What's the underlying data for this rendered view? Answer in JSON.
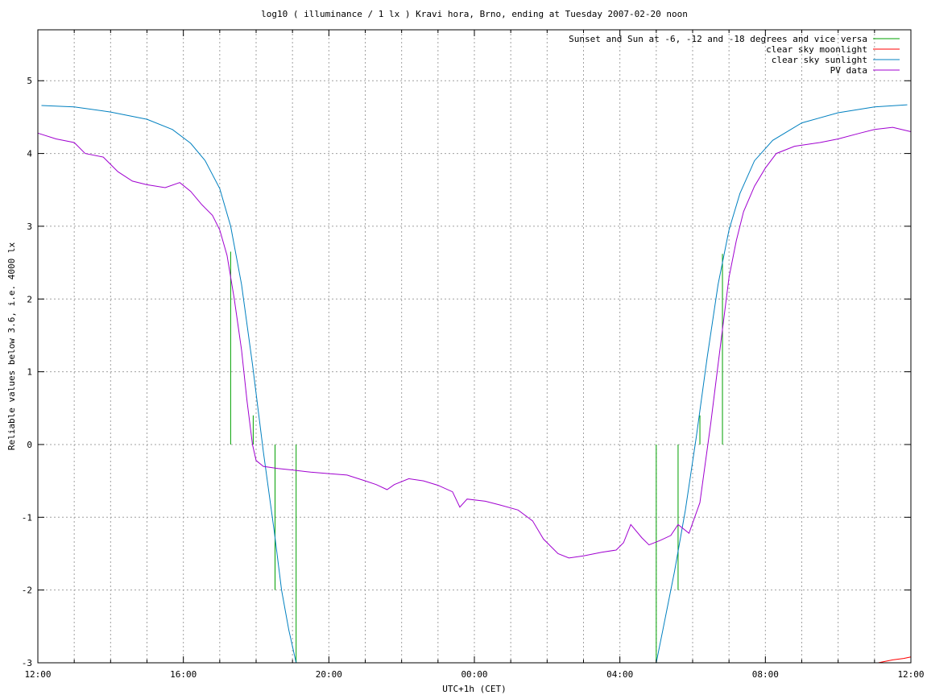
{
  "chart_data": {
    "type": "line",
    "title": "log10 ( illuminance / 1 lx ) Kravi hora, Brno, ending at Tuesday 2007-02-20 noon",
    "xlabel": "UTC+1h (CET)",
    "ylabel": "Reliable values below 3.6, i.e. 4000 lx",
    "xlim": [
      12,
      36
    ],
    "ylim": [
      -3,
      5.7
    ],
    "grid": true,
    "legend_position": "top-right",
    "x_ticks": [
      {
        "value": 12,
        "label": "12:00"
      },
      {
        "value": 16,
        "label": "16:00"
      },
      {
        "value": 20,
        "label": "20:00"
      },
      {
        "value": 24,
        "label": "00:00"
      },
      {
        "value": 28,
        "label": "04:00"
      },
      {
        "value": 32,
        "label": "08:00"
      },
      {
        "value": 36,
        "label": "12:00"
      }
    ],
    "x_minor_step": 1,
    "y_ticks": [
      {
        "value": -3,
        "label": "-3"
      },
      {
        "value": -2,
        "label": "-2"
      },
      {
        "value": -1,
        "label": "-1"
      },
      {
        "value": 0,
        "label": "0"
      },
      {
        "value": 1,
        "label": "1"
      },
      {
        "value": 2,
        "label": "2"
      },
      {
        "value": 3,
        "label": "3"
      },
      {
        "value": 4,
        "label": "4"
      },
      {
        "value": 5,
        "label": "5"
      }
    ],
    "series": [
      {
        "name": "Sunset and Sun at -6, -12 and -18 degrees and vice versa",
        "color": "#00a000",
        "style": "impulses",
        "points": [
          [
            17.3,
            2.65
          ],
          [
            17.92,
            0.4
          ],
          [
            18.52,
            -2.0
          ],
          [
            19.1,
            -3.0
          ],
          [
            29.0,
            -3.0
          ],
          [
            29.6,
            -2.0
          ],
          [
            30.2,
            0.4
          ],
          [
            30.82,
            2.62
          ]
        ]
      },
      {
        "name": "clear sky moonlight",
        "color": "#ff0000",
        "style": "line",
        "points": [
          [
            35.1,
            -3.0
          ],
          [
            35.5,
            -2.96
          ],
          [
            35.8,
            -2.94
          ],
          [
            36.0,
            -2.92
          ]
        ]
      },
      {
        "name": "clear sky sunlight",
        "color": "#0080c0",
        "style": "line",
        "points": [
          [
            12.1,
            4.66
          ],
          [
            13.0,
            4.64
          ],
          [
            14.0,
            4.57
          ],
          [
            15.0,
            4.47
          ],
          [
            15.7,
            4.33
          ],
          [
            16.2,
            4.14
          ],
          [
            16.6,
            3.9
          ],
          [
            17.0,
            3.52
          ],
          [
            17.3,
            3.0
          ],
          [
            17.6,
            2.2
          ],
          [
            17.9,
            1.1
          ],
          [
            18.2,
            -0.1
          ],
          [
            18.5,
            -1.2
          ],
          [
            18.7,
            -2.0
          ],
          [
            18.9,
            -2.55
          ],
          [
            19.1,
            -3.0
          ],
          [
            29.0,
            -3.0
          ],
          [
            29.2,
            -2.5
          ],
          [
            29.5,
            -1.75
          ],
          [
            29.8,
            -0.9
          ],
          [
            30.1,
            0.1
          ],
          [
            30.4,
            1.2
          ],
          [
            30.7,
            2.2
          ],
          [
            31.0,
            2.95
          ],
          [
            31.3,
            3.45
          ],
          [
            31.7,
            3.9
          ],
          [
            32.2,
            4.18
          ],
          [
            33.0,
            4.42
          ],
          [
            34.0,
            4.56
          ],
          [
            35.0,
            4.64
          ],
          [
            35.9,
            4.67
          ]
        ]
      },
      {
        "name": "PV data",
        "color": "#a000d0",
        "style": "line",
        "points": [
          [
            12.0,
            4.28
          ],
          [
            12.5,
            4.2
          ],
          [
            13.0,
            4.15
          ],
          [
            13.3,
            4.0
          ],
          [
            13.8,
            3.95
          ],
          [
            14.2,
            3.75
          ],
          [
            14.6,
            3.62
          ],
          [
            15.0,
            3.57
          ],
          [
            15.5,
            3.53
          ],
          [
            15.9,
            3.6
          ],
          [
            16.2,
            3.48
          ],
          [
            16.5,
            3.3
          ],
          [
            16.8,
            3.15
          ],
          [
            17.0,
            2.95
          ],
          [
            17.2,
            2.6
          ],
          [
            17.4,
            2.0
          ],
          [
            17.6,
            1.3
          ],
          [
            17.75,
            0.6
          ],
          [
            17.9,
            0.0
          ],
          [
            18.0,
            -0.22
          ],
          [
            18.2,
            -0.3
          ],
          [
            18.6,
            -0.33
          ],
          [
            19.0,
            -0.35
          ],
          [
            19.5,
            -0.38
          ],
          [
            20.0,
            -0.4
          ],
          [
            20.5,
            -0.42
          ],
          [
            21.0,
            -0.5
          ],
          [
            21.3,
            -0.55
          ],
          [
            21.6,
            -0.62
          ],
          [
            21.8,
            -0.55
          ],
          [
            22.2,
            -0.47
          ],
          [
            22.6,
            -0.5
          ],
          [
            23.0,
            -0.56
          ],
          [
            23.4,
            -0.65
          ],
          [
            23.6,
            -0.86
          ],
          [
            23.8,
            -0.75
          ],
          [
            24.3,
            -0.78
          ],
          [
            24.7,
            -0.83
          ],
          [
            25.2,
            -0.9
          ],
          [
            25.6,
            -1.05
          ],
          [
            25.9,
            -1.3
          ],
          [
            26.3,
            -1.5
          ],
          [
            26.6,
            -1.56
          ],
          [
            27.0,
            -1.53
          ],
          [
            27.5,
            -1.48
          ],
          [
            27.9,
            -1.45
          ],
          [
            28.1,
            -1.35
          ],
          [
            28.3,
            -1.1
          ],
          [
            28.6,
            -1.28
          ],
          [
            28.8,
            -1.38
          ],
          [
            29.1,
            -1.32
          ],
          [
            29.4,
            -1.25
          ],
          [
            29.6,
            -1.1
          ],
          [
            29.9,
            -1.22
          ],
          [
            30.2,
            -0.8
          ],
          [
            30.5,
            0.3
          ],
          [
            30.8,
            1.5
          ],
          [
            31.0,
            2.3
          ],
          [
            31.2,
            2.8
          ],
          [
            31.4,
            3.2
          ],
          [
            31.7,
            3.55
          ],
          [
            32.0,
            3.8
          ],
          [
            32.3,
            4.0
          ],
          [
            32.8,
            4.1
          ],
          [
            33.5,
            4.15
          ],
          [
            34.0,
            4.2
          ],
          [
            34.6,
            4.28
          ],
          [
            35.0,
            4.33
          ],
          [
            35.5,
            4.36
          ],
          [
            36.0,
            4.3
          ]
        ]
      }
    ]
  }
}
